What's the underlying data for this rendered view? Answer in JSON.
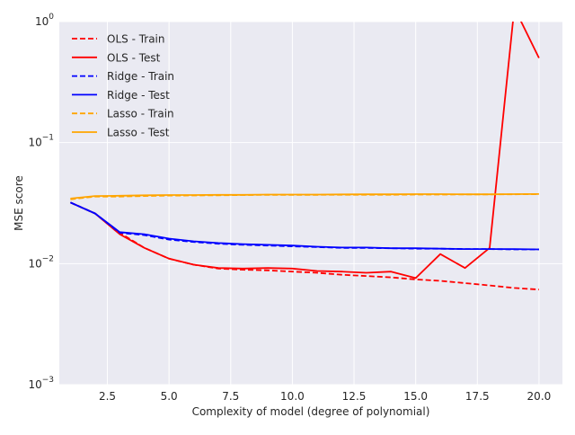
{
  "chart_data": {
    "type": "line",
    "title": "",
    "xlabel": "Complexity of model (degree of polynomial)",
    "ylabel": "MSE score",
    "yscale": "log",
    "xlim": [
      0.55,
      20.95
    ],
    "ylim": [
      0.001,
      1.0
    ],
    "grid": true,
    "legend_position": "top-left",
    "x": [
      1,
      2,
      3,
      4,
      5,
      6,
      7,
      8,
      9,
      10,
      11,
      12,
      13,
      14,
      15,
      16,
      17,
      18,
      19,
      20
    ],
    "x_ticks": [
      {
        "value": 2.5,
        "label": "2.5"
      },
      {
        "value": 5.0,
        "label": "5.0"
      },
      {
        "value": 7.5,
        "label": "7.5"
      },
      {
        "value": 10.0,
        "label": "10.0"
      },
      {
        "value": 12.5,
        "label": "12.5"
      },
      {
        "value": 15.0,
        "label": "15.0"
      },
      {
        "value": 17.5,
        "label": "17.5"
      },
      {
        "value": 20.0,
        "label": "20.0"
      }
    ],
    "y_ticks": [
      {
        "value": 0.001,
        "base": "10",
        "exp": "−3"
      },
      {
        "value": 0.01,
        "base": "10",
        "exp": "−2"
      },
      {
        "value": 0.1,
        "base": "10",
        "exp": "−1"
      },
      {
        "value": 1.0,
        "base": "10",
        "exp": "0"
      }
    ],
    "series": [
      {
        "name": "OLS - Train",
        "color": "#ff0000",
        "style": "dashed",
        "values": [
          0.032,
          0.026,
          0.018,
          0.0135,
          0.011,
          0.0098,
          0.0091,
          0.0089,
          0.0088,
          0.0086,
          0.0084,
          0.0081,
          0.0079,
          0.0077,
          0.0074,
          0.0072,
          0.0069,
          0.0066,
          0.0063,
          0.0061
        ]
      },
      {
        "name": "OLS - Test",
        "color": "#ff0000",
        "style": "solid",
        "values": [
          0.032,
          0.026,
          0.0175,
          0.0135,
          0.011,
          0.0098,
          0.0092,
          0.0091,
          0.0092,
          0.0091,
          0.0087,
          0.0086,
          0.0084,
          0.0086,
          0.0076,
          0.012,
          0.0092,
          0.0135,
          1.3,
          0.5
        ]
      },
      {
        "name": "Ridge - Train",
        "color": "#0000ff",
        "style": "dashed",
        "values": [
          0.032,
          0.026,
          0.018,
          0.0172,
          0.0158,
          0.0151,
          0.0146,
          0.0143,
          0.0141,
          0.0139,
          0.0137,
          0.0135,
          0.0135,
          0.0134,
          0.0133,
          0.0133,
          0.0132,
          0.0132,
          0.0131,
          0.0131
        ]
      },
      {
        "name": "Ridge - Test",
        "color": "#0000ff",
        "style": "solid",
        "values": [
          0.032,
          0.026,
          0.0182,
          0.0175,
          0.0161,
          0.0153,
          0.0148,
          0.0145,
          0.0143,
          0.0141,
          0.0138,
          0.0136,
          0.0136,
          0.0134,
          0.0134,
          0.0133,
          0.0132,
          0.0132,
          0.0132,
          0.0131
        ]
      },
      {
        "name": "Lasso - Train",
        "color": "#ffa500",
        "style": "dashed",
        "values": [
          0.034,
          0.0358,
          0.0358,
          0.0362,
          0.0365,
          0.0366,
          0.0367,
          0.0369,
          0.037,
          0.037,
          0.037,
          0.0371,
          0.0371,
          0.0371,
          0.0372,
          0.0372,
          0.0373,
          0.0373,
          0.0374,
          0.0375
        ]
      },
      {
        "name": "Lasso - Test",
        "color": "#ffa500",
        "style": "solid",
        "values": [
          0.0345,
          0.0362,
          0.0364,
          0.0367,
          0.0369,
          0.0369,
          0.037,
          0.037,
          0.0372,
          0.0372,
          0.0372,
          0.0373,
          0.0374,
          0.0374,
          0.0375,
          0.0375,
          0.0374,
          0.0374,
          0.0375,
          0.0376
        ]
      }
    ]
  }
}
